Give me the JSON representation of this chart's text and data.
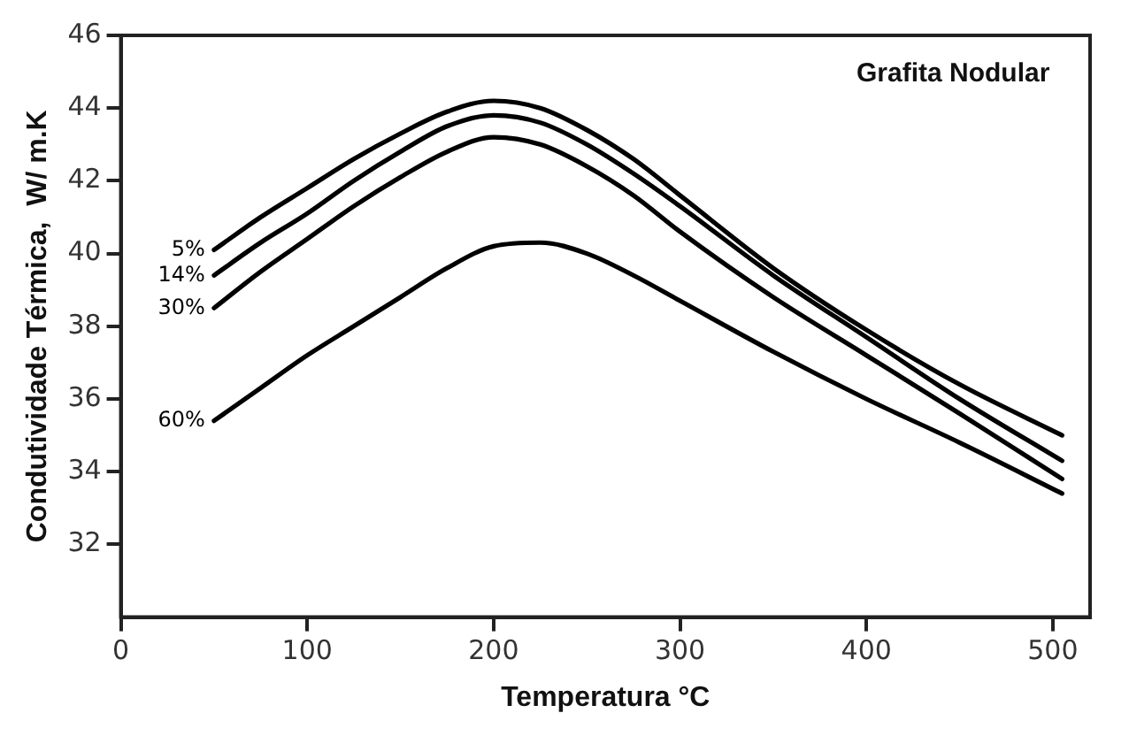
{
  "chart_data": {
    "type": "line",
    "xlabel": "Temperatura °C",
    "ylabel": "Condutividade Térmica,  W/ m.K",
    "legend_title": "Grafita Nodular",
    "x": [
      50,
      75,
      100,
      125,
      150,
      175,
      200,
      225,
      250,
      275,
      300,
      350,
      400,
      450,
      505
    ],
    "series": [
      {
        "name": "5%",
        "color": "#000000",
        "values": [
          40.1,
          41.0,
          41.8,
          42.6,
          43.3,
          43.9,
          44.2,
          44.0,
          43.4,
          42.6,
          41.6,
          39.6,
          37.9,
          36.4,
          35.0
        ]
      },
      {
        "name": "14%",
        "color": "#000000",
        "values": [
          39.4,
          40.3,
          41.1,
          42.0,
          42.8,
          43.5,
          43.8,
          43.6,
          43.0,
          42.2,
          41.3,
          39.4,
          37.7,
          36.0,
          34.3
        ]
      },
      {
        "name": "30%",
        "color": "#000000",
        "values": [
          38.5,
          39.5,
          40.4,
          41.3,
          42.1,
          42.8,
          43.2,
          43.0,
          42.4,
          41.6,
          40.6,
          38.8,
          37.2,
          35.6,
          33.8
        ]
      },
      {
        "name": "60%",
        "color": "#000000",
        "values": [
          35.4,
          36.3,
          37.2,
          38.0,
          38.8,
          39.6,
          40.2,
          40.3,
          40.0,
          39.4,
          38.7,
          37.3,
          36.0,
          34.8,
          33.4
        ]
      }
    ],
    "xlim": [
      0,
      520
    ],
    "xticks": [
      0,
      100,
      200,
      300,
      400,
      500
    ],
    "ylim": [
      30,
      46
    ],
    "yticks": [
      32,
      34,
      36,
      38,
      40,
      42,
      44,
      46
    ],
    "grid": false,
    "legend": false,
    "marker": "none",
    "line_style": "solid"
  }
}
